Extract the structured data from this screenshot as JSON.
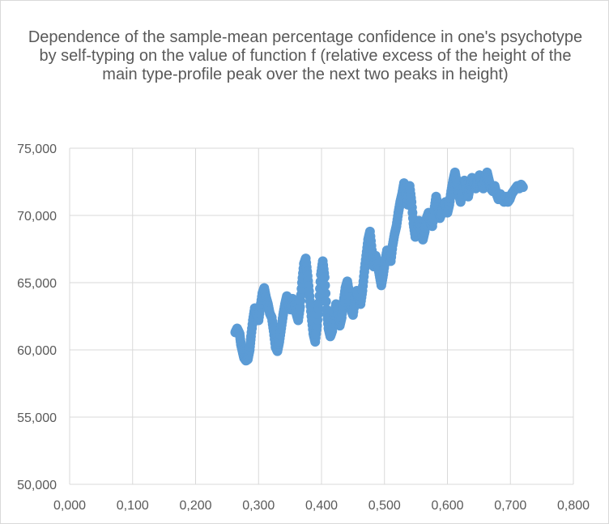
{
  "chart_data": {
    "type": "scatter",
    "title": "Dependence of the sample-mean percentage confidence in one's psychotype by self-typing on the value of function f (relative excess of the height of the main type-profile peak over the next two peaks in height)",
    "xlabel": "",
    "ylabel": "",
    "xlim": [
      0.0,
      0.8
    ],
    "ylim": [
      50.0,
      75.0
    ],
    "x_ticks": [
      "0,000",
      "0,100",
      "0,200",
      "0,300",
      "0,400",
      "0,500",
      "0,600",
      "0,700",
      "0,800"
    ],
    "y_ticks": [
      "50,000",
      "55,000",
      "60,000",
      "65,000",
      "70,000",
      "75,000"
    ],
    "grid": "vertical and horizontal major gridlines",
    "legend": "none",
    "marker_color": "#5b9bd5",
    "series": [
      {
        "points": [
          [
            0.263,
            61.3
          ],
          [
            0.266,
            61.6
          ],
          [
            0.27,
            61.2
          ],
          [
            0.272,
            60.4
          ],
          [
            0.275,
            59.8
          ],
          [
            0.277,
            59.4
          ],
          [
            0.28,
            59.2
          ],
          [
            0.283,
            59.3
          ],
          [
            0.286,
            60.0
          ],
          [
            0.288,
            61.0
          ],
          [
            0.291,
            62.2
          ],
          [
            0.294,
            63.1
          ],
          [
            0.297,
            62.6
          ],
          [
            0.3,
            62.2
          ],
          [
            0.303,
            63.2
          ],
          [
            0.306,
            64.2
          ],
          [
            0.309,
            64.6
          ],
          [
            0.312,
            63.9
          ],
          [
            0.315,
            63.4
          ],
          [
            0.318,
            62.7
          ],
          [
            0.321,
            62.4
          ],
          [
            0.324,
            61.4
          ],
          [
            0.327,
            60.2
          ],
          [
            0.33,
            59.9
          ],
          [
            0.333,
            60.6
          ],
          [
            0.336,
            61.6
          ],
          [
            0.339,
            62.6
          ],
          [
            0.342,
            63.4
          ],
          [
            0.345,
            64.0
          ],
          [
            0.348,
            63.3
          ],
          [
            0.351,
            63.0
          ],
          [
            0.354,
            63.8
          ],
          [
            0.357,
            63.6
          ],
          [
            0.36,
            62.7
          ],
          [
            0.363,
            62.2
          ],
          [
            0.366,
            63.2
          ],
          [
            0.369,
            65.0
          ],
          [
            0.372,
            66.4
          ],
          [
            0.375,
            66.8
          ],
          [
            0.378,
            65.5
          ],
          [
            0.381,
            64.0
          ],
          [
            0.384,
            62.5
          ],
          [
            0.387,
            61.2
          ],
          [
            0.39,
            60.6
          ],
          [
            0.393,
            61.8
          ],
          [
            0.396,
            63.5
          ],
          [
            0.399,
            65.6
          ],
          [
            0.402,
            66.6
          ],
          [
            0.405,
            65.4
          ],
          [
            0.408,
            63.0
          ],
          [
            0.411,
            61.6
          ],
          [
            0.414,
            61.0
          ],
          [
            0.417,
            61.4
          ],
          [
            0.42,
            62.6
          ],
          [
            0.423,
            63.4
          ],
          [
            0.426,
            62.8
          ],
          [
            0.429,
            61.8
          ],
          [
            0.432,
            62.4
          ],
          [
            0.435,
            63.6
          ],
          [
            0.438,
            64.6
          ],
          [
            0.441,
            65.1
          ],
          [
            0.444,
            64.2
          ],
          [
            0.447,
            63.0
          ],
          [
            0.45,
            62.6
          ],
          [
            0.453,
            63.6
          ],
          [
            0.456,
            64.4
          ],
          [
            0.459,
            63.8
          ],
          [
            0.462,
            63.4
          ],
          [
            0.465,
            64.4
          ],
          [
            0.468,
            65.8
          ],
          [
            0.471,
            67.0
          ],
          [
            0.474,
            68.2
          ],
          [
            0.477,
            68.8
          ],
          [
            0.48,
            67.4
          ],
          [
            0.483,
            66.2
          ],
          [
            0.486,
            67.0
          ],
          [
            0.489,
            66.4
          ],
          [
            0.492,
            65.6
          ],
          [
            0.495,
            64.8
          ],
          [
            0.498,
            65.6
          ],
          [
            0.501,
            66.6
          ],
          [
            0.504,
            67.4
          ],
          [
            0.507,
            67.0
          ],
          [
            0.51,
            66.6
          ],
          [
            0.513,
            67.8
          ],
          [
            0.516,
            68.6
          ],
          [
            0.519,
            69.2
          ],
          [
            0.522,
            70.2
          ],
          [
            0.525,
            71.0
          ],
          [
            0.528,
            71.6
          ],
          [
            0.531,
            72.4
          ],
          [
            0.534,
            71.6
          ],
          [
            0.537,
            70.8
          ],
          [
            0.54,
            72.2
          ],
          [
            0.543,
            71.0
          ],
          [
            0.546,
            69.4
          ],
          [
            0.549,
            68.4
          ],
          [
            0.552,
            68.8
          ],
          [
            0.555,
            69.6
          ],
          [
            0.558,
            69.0
          ],
          [
            0.561,
            68.2
          ],
          [
            0.564,
            68.8
          ],
          [
            0.567,
            69.8
          ],
          [
            0.57,
            70.2
          ],
          [
            0.573,
            69.4
          ],
          [
            0.576,
            69.2
          ],
          [
            0.579,
            70.4
          ],
          [
            0.582,
            71.4
          ],
          [
            0.585,
            70.6
          ],
          [
            0.588,
            69.8
          ],
          [
            0.591,
            70.2
          ],
          [
            0.594,
            70.8
          ],
          [
            0.597,
            71.0
          ],
          [
            0.6,
            70.2
          ],
          [
            0.603,
            70.8
          ],
          [
            0.606,
            71.8
          ],
          [
            0.609,
            72.6
          ],
          [
            0.612,
            73.2
          ],
          [
            0.615,
            72.4
          ],
          [
            0.618,
            71.6
          ],
          [
            0.621,
            71.0
          ],
          [
            0.624,
            71.8
          ],
          [
            0.627,
            72.6
          ],
          [
            0.63,
            72.2
          ],
          [
            0.633,
            71.4
          ],
          [
            0.636,
            72.2
          ],
          [
            0.639,
            72.8
          ],
          [
            0.642,
            72.4
          ],
          [
            0.645,
            72.0
          ],
          [
            0.648,
            72.6
          ],
          [
            0.651,
            73.0
          ],
          [
            0.654,
            72.6
          ],
          [
            0.657,
            72.0
          ],
          [
            0.66,
            72.8
          ],
          [
            0.663,
            73.2
          ],
          [
            0.666,
            72.6
          ],
          [
            0.669,
            72.0
          ],
          [
            0.672,
            71.8
          ],
          [
            0.675,
            72.2
          ],
          [
            0.678,
            71.6
          ],
          [
            0.681,
            71.2
          ],
          [
            0.684,
            71.6
          ],
          [
            0.687,
            71.2
          ],
          [
            0.69,
            71.0
          ],
          [
            0.693,
            71.4
          ],
          [
            0.696,
            71.0
          ],
          [
            0.699,
            71.2
          ],
          [
            0.702,
            71.6
          ],
          [
            0.705,
            71.8
          ],
          [
            0.708,
            72.0
          ],
          [
            0.711,
            72.2
          ],
          [
            0.714,
            72.0
          ],
          [
            0.717,
            72.3
          ],
          [
            0.72,
            72.1
          ]
        ]
      }
    ]
  }
}
